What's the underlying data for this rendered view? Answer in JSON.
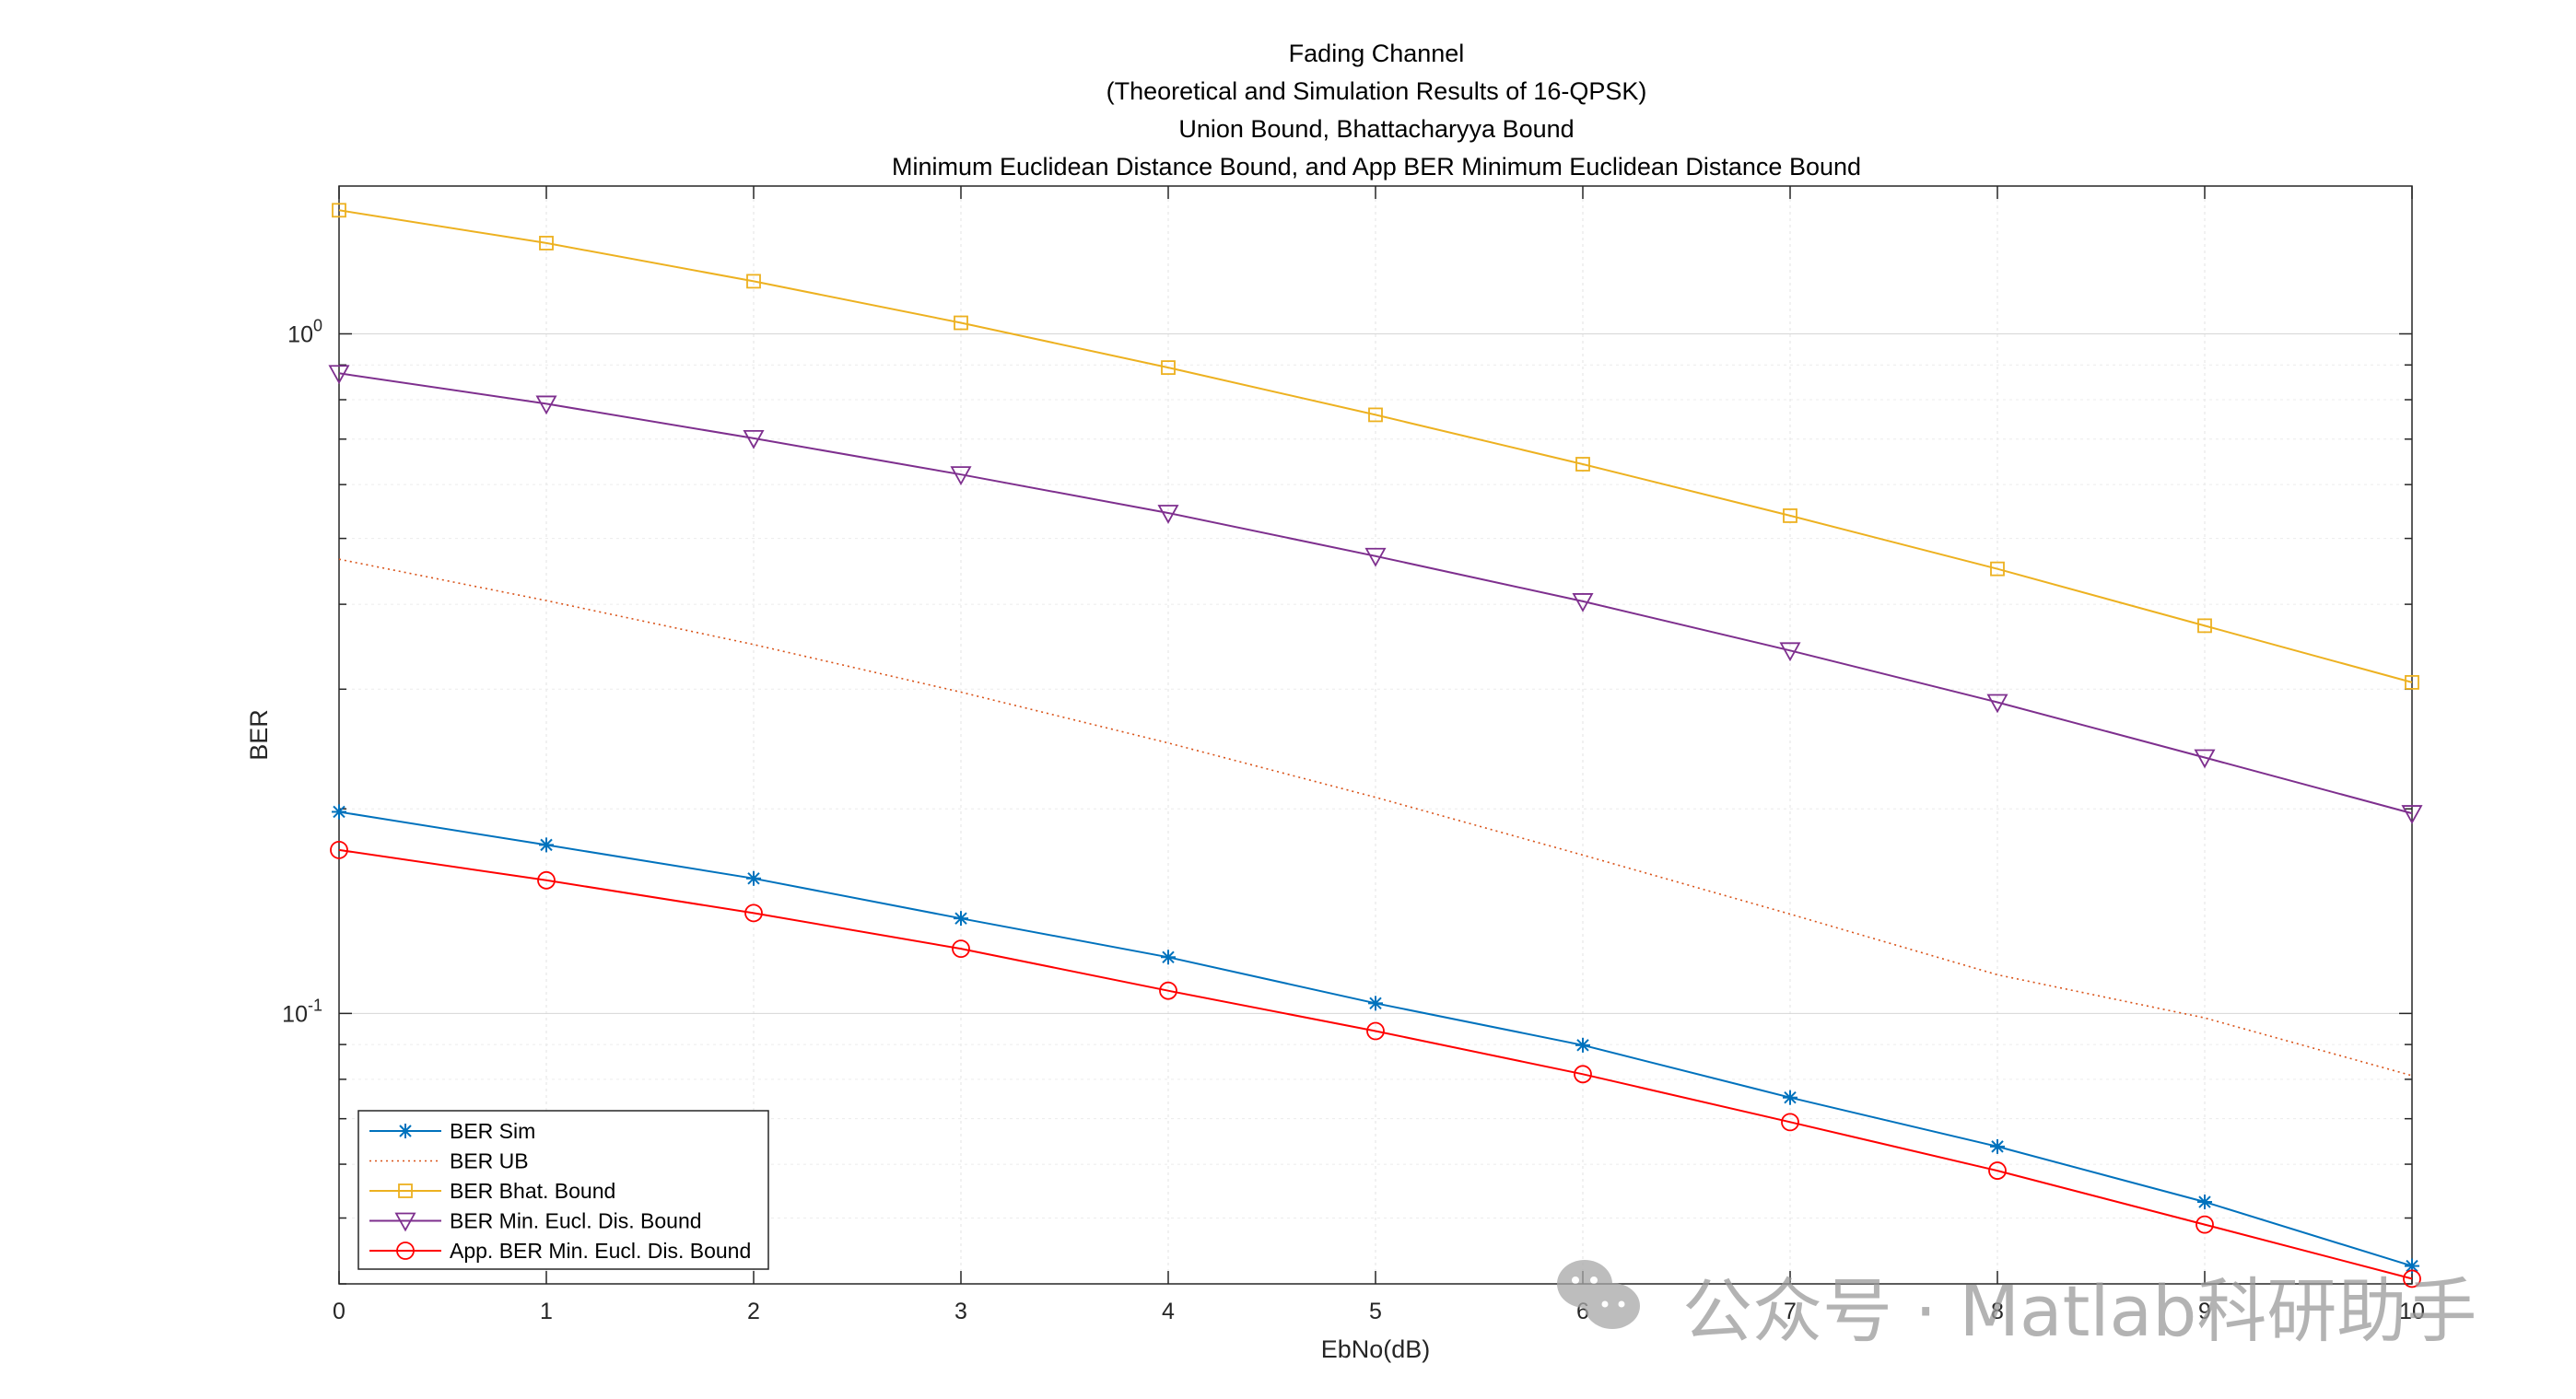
{
  "chart_data": {
    "type": "line",
    "title": [
      "Fading Channel",
      "(Theoretical and Simulation Results of 16-QPSK)",
      "Union Bound, Bhattacharyya Bound",
      "Minimum Euclidean Distance Bound, and App BER Minimum Euclidean Distance Bound"
    ],
    "xlabel": "EbNo(dB)",
    "ylabel": "BER",
    "xlim": [
      0,
      10
    ],
    "ylim": [
      0.04,
      1.65
    ],
    "yscale": "log",
    "grid": true,
    "x_ticks": [
      "0",
      "1",
      "2",
      "3",
      "4",
      "5",
      "6",
      "7",
      "8",
      "9",
      "10"
    ],
    "y_ticks": [
      {
        "value": 1,
        "base": "10",
        "exp": "0"
      },
      {
        "value": 0.1,
        "base": "10",
        "exp": "-1"
      }
    ],
    "legend_position": "bottom-left",
    "x": [
      0,
      1,
      2,
      3,
      4,
      5,
      6,
      7,
      8,
      9,
      10
    ],
    "series": [
      {
        "name": "BER Sim",
        "color": "#0072BD",
        "marker": "star",
        "line": "solid",
        "values": [
          0.198,
          0.177,
          0.158,
          0.138,
          0.121,
          0.1035,
          0.0898,
          0.0752,
          0.0637,
          0.0528,
          0.0425
        ]
      },
      {
        "name": "BER UB",
        "color": "#D95319",
        "marker": "none",
        "line": "dotted",
        "values": [
          0.466,
          0.405,
          0.349,
          0.297,
          0.25,
          0.208,
          0.171,
          0.14,
          0.114,
          0.0985,
          0.081
        ]
      },
      {
        "name": "BER Bhat. Bound",
        "color": "#EDB120",
        "marker": "square",
        "line": "solid",
        "values": [
          1.52,
          1.36,
          1.195,
          1.038,
          0.892,
          0.76,
          0.643,
          0.54,
          0.451,
          0.372,
          0.307
        ]
      },
      {
        "name": "BER Min. Eucl. Dis. Bound",
        "color": "#7E2F8E",
        "marker": "triangle-down",
        "line": "solid",
        "values": [
          0.875,
          0.789,
          0.702,
          0.621,
          0.545,
          0.471,
          0.404,
          0.342,
          0.287,
          0.238,
          0.197
        ]
      },
      {
        "name": "App. BER Min. Eucl. Dis. Bound",
        "color": "#FF0000",
        "marker": "circle",
        "line": "solid",
        "values": [
          0.174,
          0.157,
          0.1405,
          0.1245,
          0.108,
          0.0942,
          0.0814,
          0.0692,
          0.0587,
          0.0489,
          0.0407
        ]
      }
    ]
  },
  "watermark": {
    "text": "公众号 · Matlab科研助手",
    "icon": "wechat-icon"
  }
}
